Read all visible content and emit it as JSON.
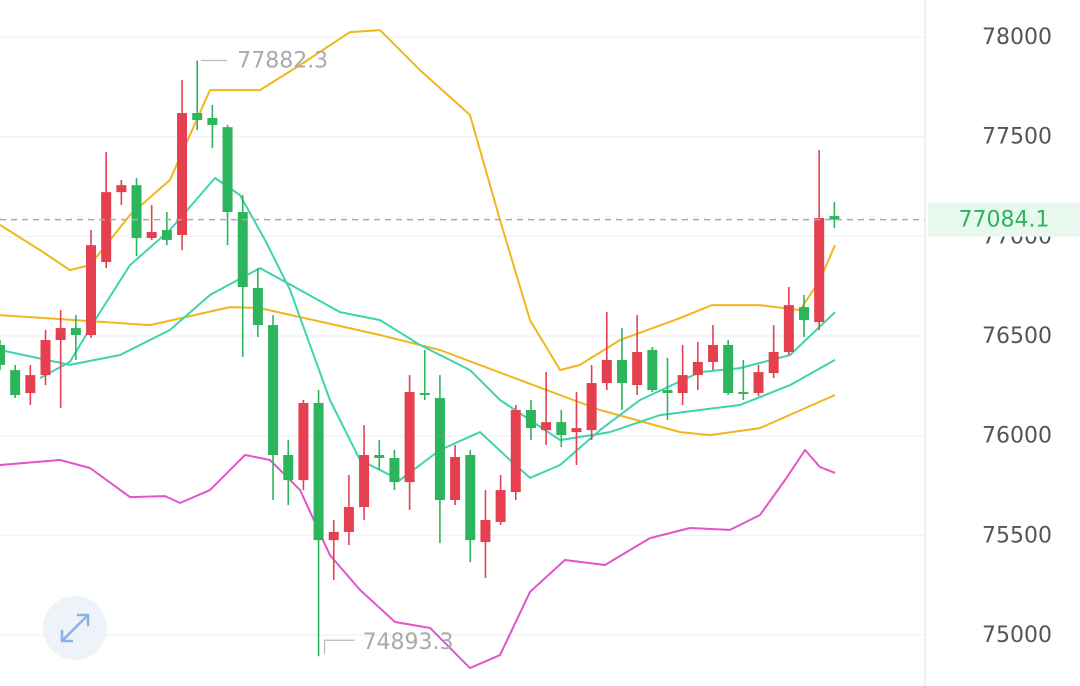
{
  "chart_data": {
    "type": "candlestick",
    "ylim": [
      74744,
      78186
    ],
    "yticks": [
      75000,
      75500,
      76000,
      76500,
      77000,
      77500,
      78000
    ],
    "grid": true,
    "up_color": "#e5404f",
    "down_color": "#2db55d",
    "candles": {
      "open": [
        76455,
        76329,
        76214,
        76304,
        76480,
        76540,
        76505,
        76871,
        77222,
        77257,
        76992,
        77032,
        77007,
        77619,
        77594,
        77548,
        77122,
        76741,
        76555,
        75903,
        75777,
        76164,
        75476,
        75517,
        75642,
        75903,
        75888,
        75767,
        76214,
        76189,
        75677,
        75903,
        75466,
        75567,
        75717,
        76129,
        76028,
        76068,
        76018,
        76028,
        76264,
        76380,
        76254,
        76430,
        76229,
        76214,
        76304,
        76370,
        76455,
        76219,
        76214,
        76314,
        76420,
        76645,
        76570,
        77102
      ],
      "high": [
        76480,
        76355,
        76355,
        76530,
        76630,
        76605,
        77032,
        77423,
        77283,
        77293,
        77157,
        77122,
        77784,
        77882.3,
        77659,
        77559,
        77207,
        76841,
        76605,
        75978,
        76179,
        76229,
        75577,
        75803,
        76053,
        75978,
        75928,
        76304,
        76430,
        76304,
        75953,
        75928,
        75727,
        75803,
        76154,
        76179,
        76319,
        76129,
        76219,
        76355,
        76620,
        76540,
        76605,
        76445,
        76390,
        76455,
        76470,
        76555,
        76480,
        76380,
        76355,
        76555,
        76746,
        76706,
        77433,
        77172
      ],
      "low": [
        76329,
        76189,
        76154,
        76254,
        76139,
        76380,
        76490,
        76841,
        77157,
        76901,
        76982,
        76956,
        76931,
        77533,
        77443,
        76956,
        76395,
        76495,
        75677,
        75652,
        75727,
        74893.3,
        75276,
        75451,
        75577,
        75828,
        75727,
        75627,
        76179,
        75461,
        75652,
        75366,
        75286,
        75552,
        75677,
        75978,
        75953,
        75943,
        75853,
        75978,
        76229,
        76129,
        76204,
        76219,
        76078,
        76154,
        76229,
        76329,
        76204,
        76179,
        76199,
        76289,
        76405,
        76495,
        76530,
        77042
      ],
      "close": [
        76355,
        76204,
        76304,
        76480,
        76540,
        76505,
        76956,
        77222,
        77257,
        76992,
        77022,
        76982,
        77619,
        77584,
        77559,
        77122,
        76746,
        76555,
        75903,
        75777,
        76164,
        75476,
        75517,
        75642,
        75903,
        75888,
        75767,
        76219,
        76204,
        75677,
        75893,
        75476,
        75577,
        75727,
        76129,
        76038,
        76068,
        76003,
        76038,
        76264,
        76380,
        76264,
        76420,
        76229,
        76214,
        76304,
        76370,
        76455,
        76214,
        76209,
        76319,
        76420,
        76655,
        76580,
        77092,
        77084.1
      ]
    },
    "series": [
      {
        "color": "#f2b51c",
        "x": [
          0,
          2.64,
          4.61,
          5.93,
          8.57,
          11.2,
          13.84,
          17.14,
          19.78,
          23.07,
          25.05,
          27.69,
          30.98,
          32.96,
          34.94,
          36.92,
          38.23,
          40.87,
          44.83,
          46.94,
          50.1,
          52.74,
          54.05,
          55.04
        ],
        "values": [
          77057,
          76931,
          76831,
          76856,
          77107,
          77283,
          77734,
          77734,
          77860,
          78025,
          78035,
          77834,
          77609,
          77082,
          76580,
          76329,
          76355,
          76480,
          76590,
          76655,
          76655,
          76630,
          76781,
          76956
        ]
      },
      {
        "color": "#f2b51c",
        "x": [
          0,
          9.89,
          15.16,
          17.14,
          25.05,
          29.0,
          34.28,
          39.55,
          44.83,
          46.8,
          50.1,
          55.04
        ],
        "values": [
          76605,
          76555,
          76645,
          76640,
          76505,
          76430,
          76279,
          76129,
          76018,
          76003,
          76038,
          76204
        ]
      },
      {
        "color": "#e255c8",
        "x": [
          0,
          3.96,
          5.93,
          8.57,
          10.88,
          11.87,
          13.84,
          16.15,
          17.8,
          19.78,
          21.75,
          23.73,
          26.04,
          28.35,
          30.98,
          32.96,
          34.94,
          37.24,
          39.88,
          42.85,
          45.48,
          48.12,
          50.1,
          51.75,
          53.07,
          54.05,
          55.04
        ],
        "values": [
          75853,
          75878,
          75838,
          75692,
          75697,
          75662,
          75727,
          75903,
          75878,
          75727,
          75401,
          75226,
          75065,
          75035,
          74834,
          74899,
          75216,
          75376,
          75351,
          75486,
          75537,
          75527,
          75602,
          75777,
          75928,
          75843,
          75813
        ]
      },
      {
        "color": "#3fd3b0",
        "x": [
          0,
          4.61,
          7.91,
          11.2,
          13.84,
          17.14,
          19.78,
          22.41,
          25.05,
          27.69,
          30.98,
          32.96,
          36.92,
          40.21,
          43.51,
          46.14,
          48.78,
          52.08,
          55.04
        ],
        "values": [
          76430,
          76355,
          76405,
          76530,
          76706,
          76841,
          76731,
          76620,
          76580,
          76455,
          76329,
          76179,
          75978,
          76018,
          76103,
          76129,
          76154,
          76254,
          76380
        ]
      },
      {
        "color": "#3fd3b0",
        "x": [
          2.64,
          4.61,
          6.26,
          8.57,
          11.2,
          14.17,
          15.82,
          17.47,
          19.12,
          21.75,
          23.73,
          26.37,
          29.0,
          31.64,
          33.62,
          34.94,
          36.92,
          39.55,
          42.19,
          46.14,
          48.78,
          52.08,
          55.04
        ],
        "values": [
          76289,
          76370,
          76580,
          76856,
          77032,
          77293,
          77207,
          76982,
          76731,
          76179,
          75878,
          75777,
          75928,
          76018,
          75878,
          75788,
          75853,
          76028,
          76179,
          76319,
          76339,
          76405,
          76620
        ]
      }
    ]
  }
}
